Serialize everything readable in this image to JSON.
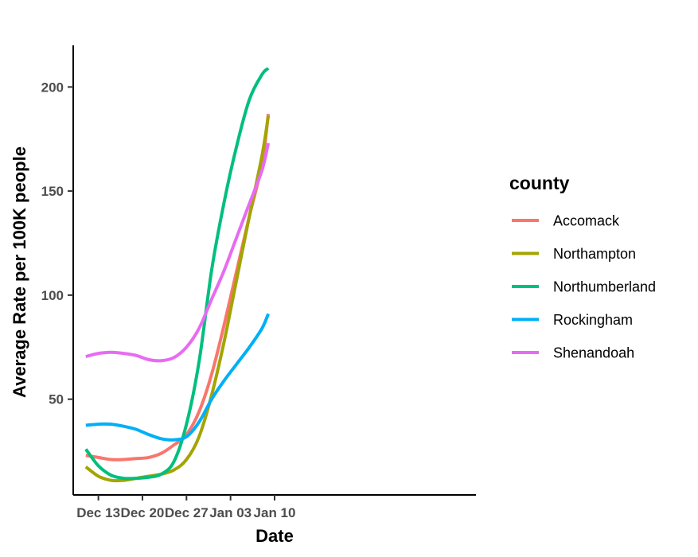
{
  "chart_data": {
    "type": "line",
    "title": "",
    "xlabel": "Date",
    "ylabel": "Average Rate per 100K people",
    "x_ticks": [
      {
        "label": "Dec 13",
        "day": 13
      },
      {
        "label": "Dec 20",
        "day": 20
      },
      {
        "label": "Dec 27",
        "day": 27
      },
      {
        "label": "Jan 03",
        "day": 34
      },
      {
        "label": "Jan 10",
        "day": 41
      }
    ],
    "y_ticks": [
      50,
      100,
      150,
      200
    ],
    "xlim": [
      "Dec 09",
      "Jan 11"
    ],
    "ylim": [
      4,
      220
    ],
    "grid": false,
    "legend": {
      "title": "county",
      "position": "right"
    },
    "x": [
      "Dec 11",
      "Dec 13",
      "Dec 15",
      "Dec 17",
      "Dec 19",
      "Dec 21",
      "Dec 23",
      "Dec 25",
      "Dec 27",
      "Dec 29",
      "Dec 31",
      "Jan 02",
      "Jan 04",
      "Jan 06",
      "Jan 08",
      "Jan 09"
    ],
    "series": [
      {
        "name": "Accomack",
        "color": "#F8766D",
        "values": [
          23,
          22,
          21,
          21,
          21.5,
          22,
          24,
          28,
          33,
          44,
          62,
          86,
          112,
          138,
          163,
          187
        ]
      },
      {
        "name": "Northampton",
        "color": "#A3A500",
        "values": [
          17.5,
          13,
          11,
          11,
          12,
          13,
          14,
          16,
          21,
          32,
          52,
          78,
          108,
          138,
          167,
          186
        ]
      },
      {
        "name": "Northumberland",
        "color": "#00BF7D",
        "values": [
          26,
          18,
          13.5,
          12,
          12,
          12.5,
          14,
          20,
          38,
          68,
          112,
          145,
          172,
          194,
          206,
          209
        ]
      },
      {
        "name": "Rockingham",
        "color": "#00B0F6",
        "values": [
          37.5,
          38,
          38,
          37,
          35.5,
          33,
          31,
          30.5,
          32,
          39,
          50,
          59,
          67,
          75,
          84,
          91
        ]
      },
      {
        "name": "Shenandoah",
        "color": "#E76BF3",
        "values": [
          70.5,
          72,
          72.5,
          72,
          71,
          69,
          68.5,
          70,
          75,
          84,
          98,
          112,
          128,
          144,
          160,
          173
        ]
      }
    ]
  }
}
